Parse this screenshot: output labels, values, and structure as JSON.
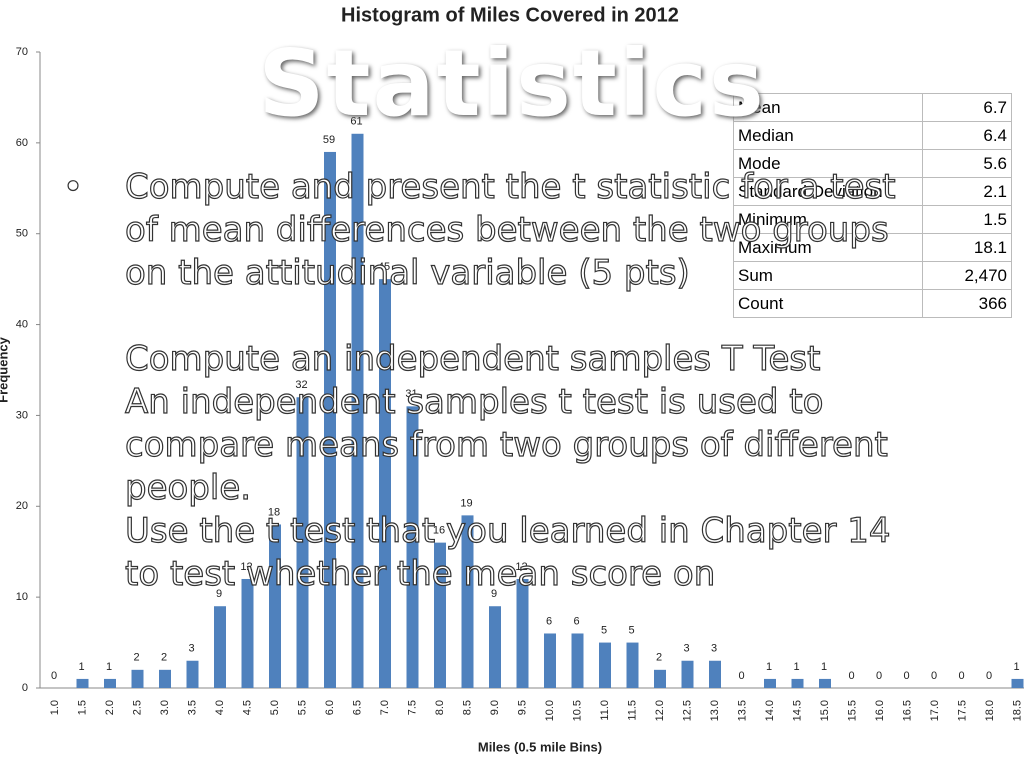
{
  "chart_data": {
    "type": "bar",
    "title": "Histogram of Miles Covered in 2012",
    "x_label": "Miles (0.5 mile Bins)",
    "y_label": "Frequency",
    "categories": [
      "1.0",
      "1.5",
      "2.0",
      "2.5",
      "3.0",
      "3.5",
      "4.0",
      "4.5",
      "5.0",
      "5.5",
      "6.0",
      "6.5",
      "7.0",
      "7.5",
      "8.0",
      "8.5",
      "9.0",
      "9.5",
      "10.0",
      "10.5",
      "11.0",
      "11.5",
      "12.0",
      "12.5",
      "13.0",
      "13.5",
      "14.0",
      "14.5",
      "15.0",
      "15.5",
      "16.0",
      "16.5",
      "17.0",
      "17.5",
      "18.0",
      "18.5"
    ],
    "values": [
      0,
      1,
      1,
      2,
      2,
      3,
      9,
      12,
      18,
      32,
      59,
      61,
      45,
      31,
      16,
      19,
      9,
      12,
      6,
      6,
      5,
      5,
      2,
      3,
      3,
      0,
      1,
      1,
      1,
      0,
      0,
      0,
      0,
      0,
      0,
      1
    ],
    "color": "#4f81bd",
    "ylim": [
      0,
      70
    ],
    "yticks": [
      0,
      10,
      20,
      30,
      40,
      50,
      60,
      70
    ]
  },
  "stats_table": {
    "rows": [
      [
        "Mean",
        "6.7"
      ],
      [
        "Median",
        "6.4"
      ],
      [
        "Mode",
        "5.6"
      ],
      [
        "Standard Deviation",
        "2.1"
      ],
      [
        "Minimum",
        "1.5"
      ],
      [
        "Maximum",
        "18.1"
      ],
      [
        "Sum",
        "2,470"
      ],
      [
        "Count",
        "366"
      ]
    ]
  },
  "slide": {
    "title": "Statistics",
    "bullet": "Compute and present the t statistic for a test of mean differences between the two groups on the attitudinal variable (5 pts)",
    "paragraphs": [
      "Compute an independent samples T Test",
      "An independent samples t test is used to compare means from two groups of different people.",
      "Use the t test that you learned in Chapter 14 to test whether the mean score on"
    ]
  }
}
